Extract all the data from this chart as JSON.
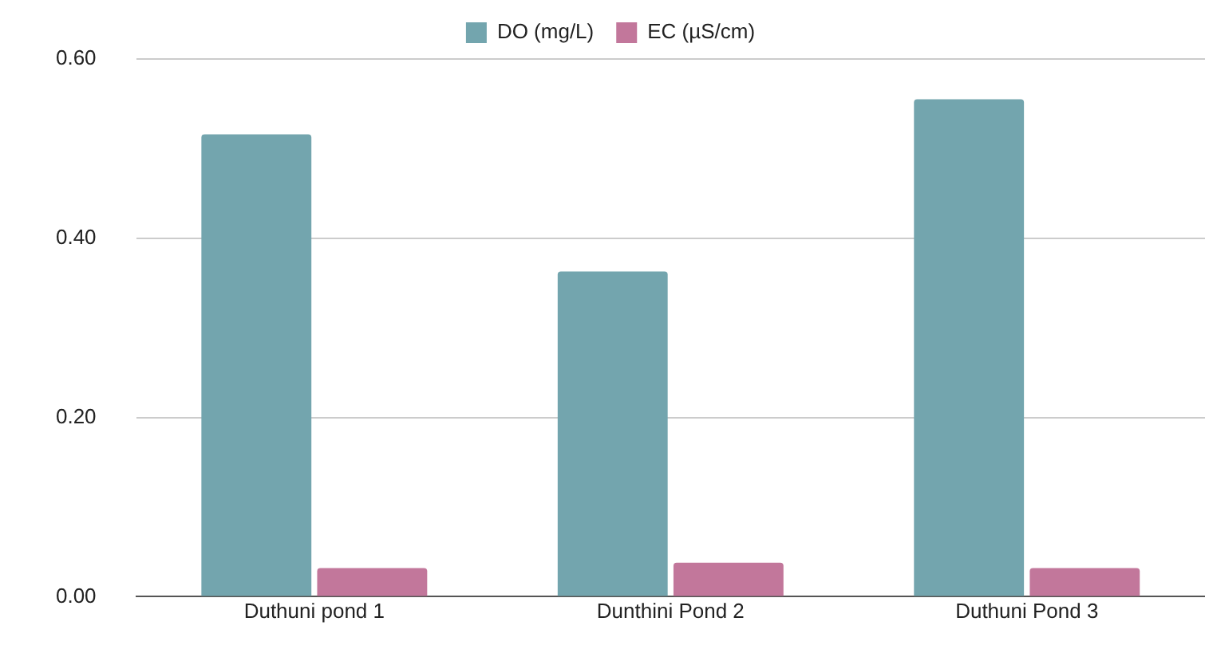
{
  "chart_data": {
    "type": "bar",
    "categories": [
      "Duthuni pond 1",
      "Dunthini Pond 2",
      "Duthuni Pond 3"
    ],
    "series": [
      {
        "name": "DO (mg/L)",
        "color": "#73a5ae",
        "values": [
          0.516,
          0.363,
          0.555
        ]
      },
      {
        "name": "EC (µS/cm)",
        "color": "#c2779b",
        "values": [
          0.032,
          0.038,
          0.032
        ]
      }
    ],
    "ylim": [
      0,
      0.6
    ],
    "yticks": [
      {
        "value": 0,
        "label": "0.00"
      },
      {
        "value": 0.2,
        "label": "0.20"
      },
      {
        "value": 0.4,
        "label": "0.40"
      },
      {
        "value": 0.6,
        "label": "0.60"
      }
    ],
    "grid": "y",
    "legend": "top"
  }
}
